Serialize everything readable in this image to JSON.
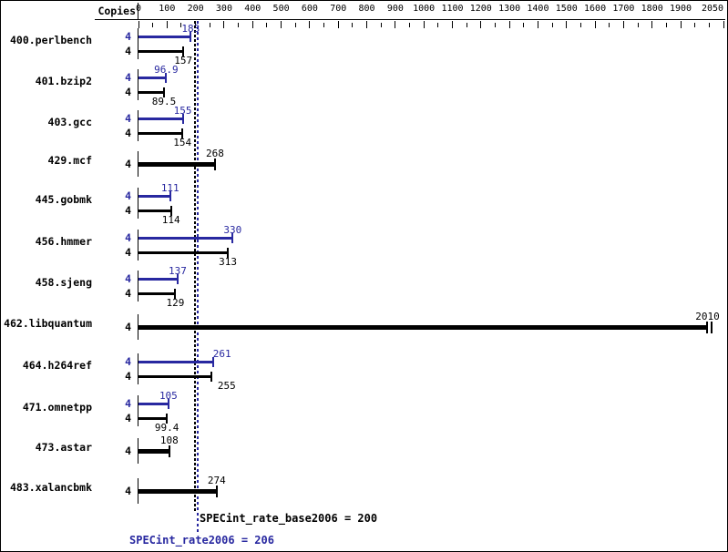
{
  "header": {
    "copies_label": "Copies"
  },
  "colors": {
    "rate_blue": "#2828a0",
    "base_black": "#000000",
    "background": "#ffffff"
  },
  "chart_data": {
    "type": "bar",
    "orientation": "horizontal",
    "axis": {
      "position": "top",
      "min": 0,
      "max": 2050,
      "minor_tick_step": 50,
      "major_tick_step": 100,
      "tick_labels": [
        "0",
        "100",
        "200",
        "300",
        "400",
        "500",
        "600",
        "700",
        "800",
        "900",
        "1000",
        "1100",
        "1200",
        "1300",
        "1400",
        "1500",
        "1600",
        "1700",
        "1800",
        "1900",
        "2050"
      ]
    },
    "legend": {
      "rate_series_color_meaning": "SPECint_rate2006 (blue)",
      "base_series_color_meaning": "SPECint_rate_base2006 (black)"
    },
    "benchmarks": [
      {
        "name": "400.perlbench",
        "copies": 4,
        "rate2006": 183,
        "base2006": 157,
        "rate_label": "183",
        "base_label": "157"
      },
      {
        "name": "401.bzip2",
        "copies": 4,
        "rate2006": 96.9,
        "base2006": 89.5,
        "rate_label": "96.9",
        "base_label": "89.5"
      },
      {
        "name": "403.gcc",
        "copies": 4,
        "rate2006": 155,
        "base2006": 154,
        "rate_label": "155",
        "base_label": "154"
      },
      {
        "name": "429.mcf",
        "copies": 4,
        "single_bar": true,
        "value": 268,
        "value_label": "268"
      },
      {
        "name": "445.gobmk",
        "copies": 4,
        "rate2006": 111,
        "base2006": 114,
        "rate_label": "111",
        "base_label": "114"
      },
      {
        "name": "456.hmmer",
        "copies": 4,
        "rate2006": 330,
        "base2006": 313,
        "rate_label": "330",
        "base_label": "313"
      },
      {
        "name": "458.sjeng",
        "copies": 4,
        "rate2006": 137,
        "base2006": 129,
        "rate_label": "137",
        "base_label": "129"
      },
      {
        "name": "462.libquantum",
        "copies": 4,
        "single_bar": true,
        "value": 2010,
        "value_label": "2010",
        "double_end_cap": true
      },
      {
        "name": "464.h264ref",
        "copies": 4,
        "rate2006": 261,
        "base2006": 255,
        "rate_label": "261",
        "base_label": "255"
      },
      {
        "name": "471.omnetpp",
        "copies": 4,
        "rate2006": 105,
        "base2006": 99.4,
        "rate_label": "105",
        "base_label": "99.4"
      },
      {
        "name": "473.astar",
        "copies": 4,
        "single_bar": true,
        "value": 108,
        "value_label": "108"
      },
      {
        "name": "483.xalancbmk",
        "copies": 4,
        "single_bar": true,
        "value": 274,
        "value_label": "274"
      }
    ],
    "reference_lines": [
      {
        "name": "SPECint_rate_base2006",
        "value": 200,
        "label": "SPECint_rate_base2006 = 200",
        "color": "#000000",
        "style": "dashed"
      },
      {
        "name": "SPECint_rate2006",
        "value": 206,
        "label": "SPECint_rate2006 = 206",
        "color": "#2828a0",
        "style": "dashed"
      }
    ]
  }
}
